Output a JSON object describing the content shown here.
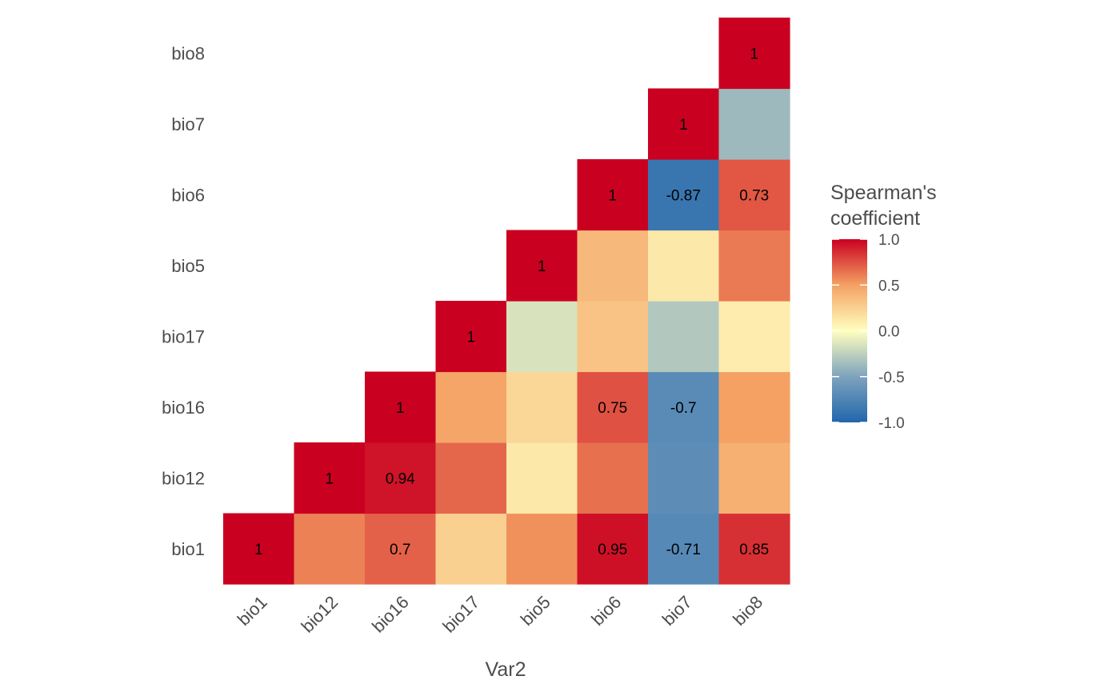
{
  "chart_data": {
    "type": "heatmap",
    "title": "",
    "xlabel": "Var2",
    "ylabel": "",
    "x_categories": [
      "bio1",
      "bio12",
      "bio16",
      "bio17",
      "bio5",
      "bio6",
      "bio7",
      "bio8"
    ],
    "y_categories": [
      "bio1",
      "bio12",
      "bio16",
      "bio17",
      "bio5",
      "bio6",
      "bio7",
      "bio8"
    ],
    "cells": [
      {
        "x": "bio1",
        "y": "bio1",
        "value": 1,
        "label": "1"
      },
      {
        "x": "bio12",
        "y": "bio1",
        "value": 0.6
      },
      {
        "x": "bio16",
        "y": "bio1",
        "value": 0.7,
        "label": "0.7"
      },
      {
        "x": "bio17",
        "y": "bio1",
        "value": 0.25
      },
      {
        "x": "bio5",
        "y": "bio1",
        "value": 0.55
      },
      {
        "x": "bio6",
        "y": "bio1",
        "value": 0.95,
        "label": "0.95"
      },
      {
        "x": "bio7",
        "y": "bio1",
        "value": -0.71,
        "label": "-0.71"
      },
      {
        "x": "bio8",
        "y": "bio1",
        "value": 0.85,
        "label": "0.85"
      },
      {
        "x": "bio12",
        "y": "bio12",
        "value": 1,
        "label": "1"
      },
      {
        "x": "bio16",
        "y": "bio12",
        "value": 0.94,
        "label": "0.94"
      },
      {
        "x": "bio17",
        "y": "bio12",
        "value": 0.68
      },
      {
        "x": "bio5",
        "y": "bio12",
        "value": 0.12
      },
      {
        "x": "bio6",
        "y": "bio12",
        "value": 0.65
      },
      {
        "x": "bio7",
        "y": "bio12",
        "value": -0.68
      },
      {
        "x": "bio8",
        "y": "bio12",
        "value": 0.42
      },
      {
        "x": "bio16",
        "y": "bio16",
        "value": 1,
        "label": "1"
      },
      {
        "x": "bio17",
        "y": "bio16",
        "value": 0.48
      },
      {
        "x": "bio5",
        "y": "bio16",
        "value": 0.22
      },
      {
        "x": "bio6",
        "y": "bio16",
        "value": 0.75,
        "label": "0.75"
      },
      {
        "x": "bio7",
        "y": "bio16",
        "value": -0.7,
        "label": "-0.7"
      },
      {
        "x": "bio8",
        "y": "bio16",
        "value": 0.5
      },
      {
        "x": "bio17",
        "y": "bio17",
        "value": 1,
        "label": "1"
      },
      {
        "x": "bio5",
        "y": "bio17",
        "value": -0.15
      },
      {
        "x": "bio6",
        "y": "bio17",
        "value": 0.32
      },
      {
        "x": "bio7",
        "y": "bio17",
        "value": -0.3
      },
      {
        "x": "bio8",
        "y": "bio17",
        "value": 0.1
      },
      {
        "x": "bio5",
        "y": "bio5",
        "value": 1,
        "label": "1"
      },
      {
        "x": "bio6",
        "y": "bio5",
        "value": 0.37
      },
      {
        "x": "bio7",
        "y": "bio5",
        "value": 0.12
      },
      {
        "x": "bio8",
        "y": "bio5",
        "value": 0.62
      },
      {
        "x": "bio6",
        "y": "bio6",
        "value": 1,
        "label": "1"
      },
      {
        "x": "bio7",
        "y": "bio6",
        "value": -0.87,
        "label": "-0.87"
      },
      {
        "x": "bio8",
        "y": "bio6",
        "value": 0.73,
        "label": "0.73"
      },
      {
        "x": "bio7",
        "y": "bio7",
        "value": 1,
        "label": "1"
      },
      {
        "x": "bio8",
        "y": "bio7",
        "value": -0.38
      },
      {
        "x": "bio8",
        "y": "bio8",
        "value": 1,
        "label": "1"
      }
    ],
    "legend": {
      "title_lines": [
        "Spearman's",
        "coefficient"
      ],
      "position": "right",
      "ticks": [
        1.0,
        0.5,
        0.0,
        -0.5,
        -1.0
      ],
      "tick_labels": [
        "1.0",
        "0.5",
        "0.0",
        "-0.5",
        "-1.0"
      ],
      "range": [
        -1,
        1
      ]
    },
    "color_scale": {
      "stops": [
        {
          "value": -1.0,
          "color": "#2166ac"
        },
        {
          "value": -0.5,
          "color": "#7ea3bd"
        },
        {
          "value": 0.0,
          "color": "#ffffbf"
        },
        {
          "value": 0.5,
          "color": "#f4a163"
        },
        {
          "value": 1.0,
          "color": "#ca0020"
        }
      ]
    },
    "grid": false
  }
}
